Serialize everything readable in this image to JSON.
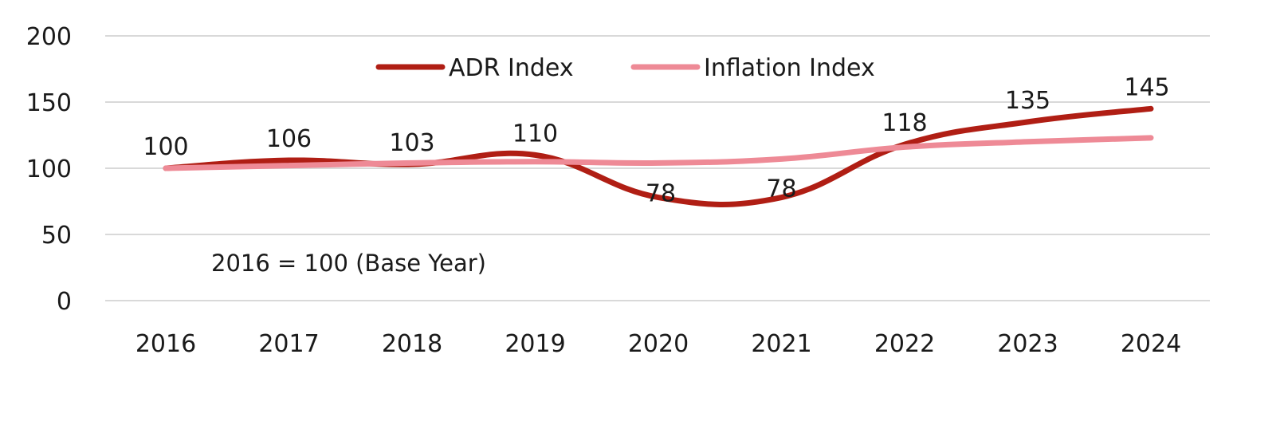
{
  "chart_data": {
    "type": "line",
    "categories": [
      "2016",
      "2017",
      "2018",
      "2019",
      "2020",
      "2021",
      "2022",
      "2023",
      "2024"
    ],
    "series": [
      {
        "name": "ADR Index",
        "values": [
          100,
          106,
          103,
          110,
          78,
          78,
          118,
          135,
          145
        ],
        "color": "#b01e14",
        "data_labels": true
      },
      {
        "name": "Inflation Index",
        "values": [
          100,
          102,
          104,
          105,
          104,
          107,
          116,
          120,
          123
        ],
        "color": "#ee8a96",
        "data_labels": false
      }
    ],
    "title": "",
    "xlabel": "",
    "ylabel": "",
    "ylim": [
      0,
      200
    ],
    "yticks": [
      0,
      50,
      100,
      150,
      200
    ],
    "grid": true,
    "legend_position": "top",
    "smooth": true,
    "annotation": "2016 = 100 (Base Year)"
  }
}
